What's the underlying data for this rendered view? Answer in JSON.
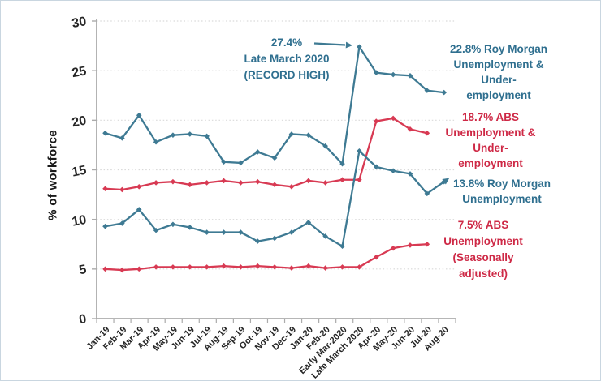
{
  "window": {
    "background": "#ffffff",
    "border_color": "#c9d6e0"
  },
  "colors": {
    "teal_line": "#3E7A93",
    "red_line": "#D83A53",
    "teal_text": "#2F6F8F",
    "red_text": "#CE2946",
    "axis": "#ababab",
    "grid": "#d9d9d9",
    "tick_text": "#262626"
  },
  "annotation": {
    "value": "27.4%",
    "date": "Late March 2020",
    "note": "(RECORD HIGH)"
  },
  "legends": {
    "rm_under": {
      "lines": [
        "22.8% Roy Morgan",
        "Unemployment &",
        "Under-",
        "employment"
      ]
    },
    "abs_under": {
      "lines": [
        "18.7% ABS",
        "Unemployment &",
        "Under-",
        "employment"
      ]
    },
    "rm_unemp": {
      "lines": [
        "13.8% Roy Morgan",
        "Unemployment"
      ]
    },
    "abs_unemp": {
      "lines": [
        "7.5% ABS",
        "Unemployment",
        "(Seasonally",
        "adjusted)"
      ]
    }
  },
  "chart_data": {
    "type": "line",
    "title": "",
    "xlabel": "",
    "ylabel": "% of workforce",
    "ylim": [
      0,
      30
    ],
    "yticks": [
      0,
      5,
      10,
      15,
      20,
      25,
      30
    ],
    "grid": "horizontal-dotted",
    "legend_position": "right-labels",
    "categories": [
      "Jan-19",
      "Feb-19",
      "Mar-19",
      "Apr-19",
      "May-19",
      "Jun-19",
      "Jul-19",
      "Aug-19",
      "Sep-19",
      "Oct-19",
      "Nov-19",
      "Dec-19",
      "Jan-20",
      "Feb-20",
      "Early Mar-2020",
      "Late March 2020",
      "Apr-20",
      "May-20",
      "Jun-20",
      "Jul-20",
      "Aug-20"
    ],
    "series": [
      {
        "name": "Roy Morgan Unemployment & Under-employment",
        "slug": "roy-morgan-unemployment-and-underemployment",
        "color": "#3E7A93",
        "end_arrow": false,
        "values": [
          18.7,
          18.2,
          20.5,
          17.8,
          18.5,
          18.6,
          18.4,
          15.8,
          15.7,
          16.8,
          16.2,
          18.6,
          18.5,
          17.4,
          15.6,
          27.4,
          24.8,
          24.6,
          24.5,
          23.0,
          22.8
        ]
      },
      {
        "name": "ABS Unemployment & Under-employment",
        "slug": "abs-unemployment-and-underemployment",
        "color": "#D83A53",
        "end_arrow": false,
        "values": [
          13.1,
          13.0,
          13.3,
          13.7,
          13.8,
          13.5,
          13.7,
          13.9,
          13.7,
          13.8,
          13.5,
          13.3,
          13.9,
          13.7,
          14.0,
          14.0,
          19.9,
          20.2,
          19.1,
          18.7,
          null
        ]
      },
      {
        "name": "Roy Morgan Unemployment",
        "slug": "roy-morgan-unemployment",
        "color": "#3E7A93",
        "end_arrow": true,
        "values": [
          9.3,
          9.6,
          11.0,
          8.9,
          9.5,
          9.2,
          8.7,
          8.7,
          8.7,
          7.8,
          8.1,
          8.7,
          9.7,
          8.3,
          7.3,
          16.9,
          15.3,
          14.9,
          14.6,
          12.6,
          13.8
        ]
      },
      {
        "name": "ABS Unemployment (Seasonally adjusted)",
        "slug": "abs-unemployment-seasonally-adjusted",
        "color": "#D83A53",
        "end_arrow": false,
        "values": [
          5.0,
          4.9,
          5.0,
          5.2,
          5.2,
          5.2,
          5.2,
          5.3,
          5.2,
          5.3,
          5.2,
          5.1,
          5.3,
          5.1,
          5.2,
          5.2,
          6.2,
          7.1,
          7.4,
          7.5,
          null
        ]
      }
    ],
    "annotations": [
      {
        "text": "27.4% Late March 2020 (RECORD HIGH)",
        "points_to_category": "Late March 2020",
        "points_to_value": 27.4
      }
    ]
  }
}
